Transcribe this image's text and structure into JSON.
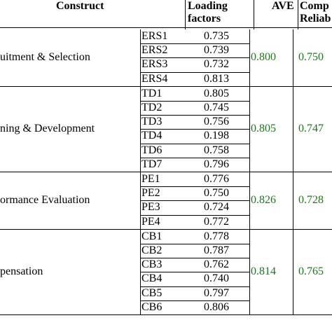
{
  "header": {
    "construct": "Construct",
    "loading_line1": "Loading",
    "loading_line2": "factors",
    "ave": "AVE",
    "comp_line1": "Comp",
    "comp_line2": "Reliab"
  },
  "groups": [
    {
      "name": "uitment & Selection",
      "ave": "0.800",
      "cr": "0.750",
      "items": [
        {
          "code": "ERS1",
          "loading": "0.735"
        },
        {
          "code": "ERS2",
          "loading": "0.739"
        },
        {
          "code": "ERS3",
          "loading": "0.732"
        },
        {
          "code": "ERS4",
          "loading": "0.813"
        }
      ]
    },
    {
      "name": "ning & Development",
      "ave": "0.805",
      "cr": "0.747",
      "items": [
        {
          "code": "TD1",
          "loading": "0.805"
        },
        {
          "code": "TD2",
          "loading": "0.745"
        },
        {
          "code": "TD3",
          "loading": "0.756"
        },
        {
          "code": "TD4",
          "loading": "0.198"
        },
        {
          "code": "TD6",
          "loading": "0.758"
        },
        {
          "code": "TD7",
          "loading": "0.796"
        }
      ]
    },
    {
      "name": "ormance Evaluation",
      "ave": "0.826",
      "cr": "0.728",
      "items": [
        {
          "code": "PE1",
          "loading": "0.776"
        },
        {
          "code": "PE2",
          "loading": "0.750"
        },
        {
          "code": "PE3",
          "loading": "0.724"
        },
        {
          "code": "PE4",
          "loading": "0.772"
        }
      ]
    },
    {
      "name": "pensation",
      "ave": "0.814",
      "cr": "0.765",
      "items": [
        {
          "code": "CB1",
          "loading": "0.778"
        },
        {
          "code": "CB2",
          "loading": "0.787"
        },
        {
          "code": "CB3",
          "loading": "0.762"
        },
        {
          "code": "CB4",
          "loading": "0.740"
        },
        {
          "code": "CB5",
          "loading": "0.797"
        },
        {
          "code": "CB6",
          "loading": "0.806"
        }
      ]
    }
  ]
}
